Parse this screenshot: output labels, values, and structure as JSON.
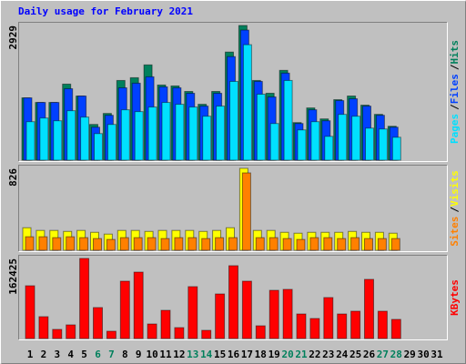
{
  "title": "Daily usage for February 2021",
  "chart_data": [
    {
      "type": "bar",
      "legend_separator": "/",
      "series": [
        {
          "name": "Hits",
          "color": "#00805c",
          "values": [
            1355,
            1255,
            1255,
            1654,
            1395,
            777,
            1016,
            1733,
            1793,
            2072,
            1634,
            1614,
            1494,
            1215,
            1494,
            2351,
            2929,
            1733,
            1455,
            1953,
            817,
            1136,
            897,
            1315,
            1395,
            1196,
            996,
            737,
            null,
            null,
            null
          ]
        },
        {
          "name": "Files",
          "color": "#0040ff",
          "values": [
            1355,
            1255,
            1255,
            1554,
            1395,
            717,
            976,
            1574,
            1674,
            1813,
            1594,
            1574,
            1455,
            1176,
            1455,
            2252,
            2829,
            1713,
            1375,
            1893,
            797,
            1096,
            857,
            1295,
            1335,
            1176,
            976,
            717,
            null,
            null,
            null
          ]
        },
        {
          "name": "Pages",
          "color": "#00e0ff",
          "values": [
            837,
            917,
            857,
            1076,
            937,
            578,
            777,
            1096,
            1056,
            1156,
            1255,
            1215,
            1156,
            956,
            1176,
            1713,
            2511,
            1435,
            797,
            1733,
            658,
            837,
            518,
            996,
            956,
            697,
            678,
            498,
            null,
            null,
            null
          ]
        }
      ],
      "ylim": [
        0,
        2929
      ],
      "yticks": [
        2929
      ]
    },
    {
      "type": "bar",
      "legend_separator": "/",
      "series": [
        {
          "name": "Visits",
          "color": "#ffff00",
          "values": [
            227,
            200,
            200,
            190,
            200,
            181,
            163,
            200,
            200,
            190,
            200,
            200,
            200,
            190,
            200,
            227,
            826,
            200,
            200,
            181,
            172,
            181,
            181,
            181,
            190,
            181,
            181,
            172,
            null,
            null,
            null
          ]
        },
        {
          "name": "Sites",
          "color": "#ff8000",
          "values": [
            136,
            136,
            127,
            136,
            127,
            118,
            109,
            127,
            127,
            127,
            118,
            127,
            127,
            118,
            127,
            127,
            780,
            127,
            127,
            118,
            109,
            127,
            127,
            118,
            127,
            118,
            118,
            118,
            null,
            null,
            null
          ]
        }
      ],
      "ylim": [
        0,
        826
      ],
      "yticks": [
        826
      ]
    },
    {
      "type": "bar",
      "categories": [
        "1",
        "2",
        "3",
        "4",
        "5",
        "6",
        "7",
        "8",
        "9",
        "10",
        "11",
        "12",
        "13",
        "14",
        "15",
        "16",
        "17",
        "18",
        "19",
        "20",
        "21",
        "22",
        "23",
        "24",
        "25",
        "26",
        "27",
        "28",
        "29",
        "30",
        "31"
      ],
      "category_colors": [
        "#000000",
        "#000000",
        "#000000",
        "#000000",
        "#000000",
        "#00805c",
        "#00805c",
        "#000000",
        "#000000",
        "#000000",
        "#000000",
        "#000000",
        "#00805c",
        "#00805c",
        "#000000",
        "#000000",
        "#000000",
        "#000000",
        "#000000",
        "#00805c",
        "#00805c",
        "#000000",
        "#000000",
        "#000000",
        "#000000",
        "#000000",
        "#00805c",
        "#00805c",
        "#000000",
        "#000000",
        "#000000"
      ],
      "series": [
        {
          "name": "KBytes",
          "color": "#ff0000",
          "values": [
            107000,
            44300,
            18500,
            27700,
            162425,
            62800,
            14800,
            116300,
            134700,
            29500,
            57200,
            22100,
            105200,
            16600,
            90400,
            147700,
            116300,
            25800,
            97800,
            99700,
            49800,
            40600,
            83100,
            49800,
            55400,
            120000,
            55400,
            38800,
            null,
            null,
            null
          ]
        }
      ],
      "ylim": [
        0,
        162425
      ],
      "yticks": [
        162425
      ]
    }
  ]
}
